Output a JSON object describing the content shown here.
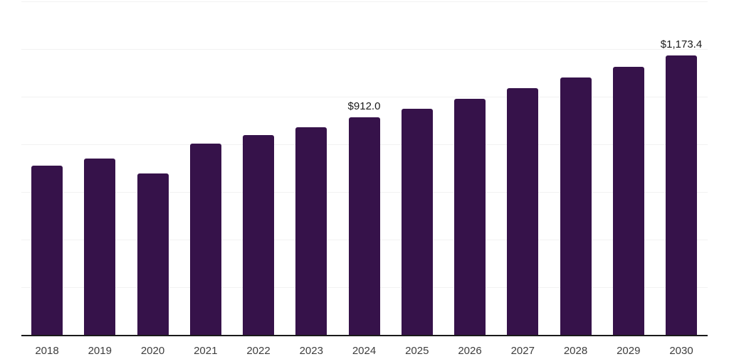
{
  "chart_data": {
    "type": "bar",
    "title": "",
    "xlabel": "",
    "ylabel": "",
    "categories": [
      "2018",
      "2019",
      "2020",
      "2021",
      "2022",
      "2023",
      "2024",
      "2025",
      "2026",
      "2027",
      "2028",
      "2029",
      "2030"
    ],
    "values": [
      709,
      741,
      679,
      804,
      840,
      873,
      912.0,
      950,
      992,
      1036,
      1081,
      1126,
      1173.4
    ],
    "annotations": [
      {
        "category": "2024",
        "text": "$912.0"
      },
      {
        "category": "2030",
        "text": "$1,173.4"
      }
    ],
    "ylim": [
      0,
      1400
    ],
    "gridline_step": 200,
    "grid": true,
    "legend": "none",
    "currency_prefix": "$"
  },
  "colors": {
    "bar": "#36124a",
    "axis": "#1a1a1a",
    "gridline": "#f2f2f2",
    "tick_label": "#3d3d3d",
    "data_label": "#1a1a1a",
    "background": "#ffffff"
  }
}
